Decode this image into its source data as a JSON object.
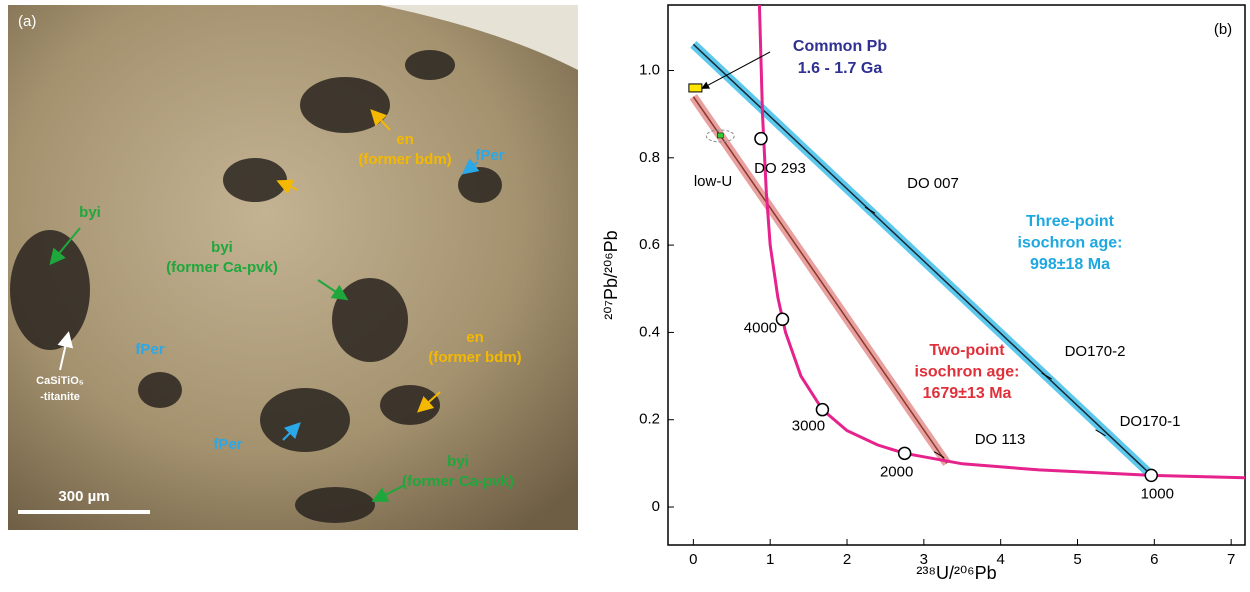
{
  "photo": {
    "panel_label": "(a)",
    "scale_bar": "300 µm",
    "labels": [
      {
        "lines": [
          "en",
          "(former bdm)"
        ],
        "color": "#f5b800"
      },
      {
        "lines": [
          "fPer"
        ],
        "color": "#2aa8e8"
      },
      {
        "lines": [
          "byi"
        ],
        "color": "#1ea83c"
      },
      {
        "lines": [
          "byi",
          "(former Ca-pvk)"
        ],
        "color": "#1ea83c"
      },
      {
        "lines": [
          "CaSiTiO₅",
          "-titanite"
        ],
        "color": "#ffffff"
      },
      {
        "lines": [
          "fPer"
        ],
        "color": "#2aa8e8"
      },
      {
        "lines": [
          "en",
          "(former bdm)"
        ],
        "color": "#f5b800"
      },
      {
        "lines": [
          "fPer"
        ],
        "color": "#2aa8e8"
      },
      {
        "lines": [
          "byi",
          "(former Ca-pvk)"
        ],
        "color": "#1ea83c"
      }
    ]
  },
  "chart_data": {
    "type": "line",
    "panel_label": "(b)",
    "x_label": "²³⁸U/²⁰⁶Pb",
    "y_label": "²⁰⁷Pb/²⁰⁶Pb",
    "xlim": [
      -0.33,
      7.18
    ],
    "ylim": [
      -0.087,
      1.15
    ],
    "xticks": [
      0,
      1,
      2,
      3,
      4,
      5,
      6,
      7
    ],
    "yticks": [
      0,
      0.2,
      0.4,
      0.6,
      0.8,
      {
        "value": 1,
        "label": "1.0"
      }
    ],
    "concordia": {
      "color": "#e6228c",
      "x": [
        0.86,
        0.9,
        0.95,
        1.0,
        1.1,
        1.2,
        1.4,
        1.68,
        2.0,
        2.4,
        2.75,
        3.5,
        4.5,
        5.96,
        7.18
      ],
      "values": [
        1.15,
        0.9,
        0.72,
        0.6,
        0.48,
        0.4,
        0.3,
        0.223,
        0.175,
        0.142,
        0.123,
        0.099,
        0.085,
        0.0725,
        0.067
      ]
    },
    "concordia_ages": {
      "labels": [
        "4000",
        "3000",
        "2000",
        "1000"
      ],
      "x": [
        1.16,
        1.68,
        2.75,
        5.96
      ],
      "values": [
        0.43,
        0.223,
        0.123,
        0.0725
      ]
    },
    "isochrons": [
      {
        "color": "#1a2a3a",
        "band_color": "#5cc8ec",
        "x": [
          0,
          5.95
        ],
        "values": [
          1.06,
          0.075
        ],
        "label": [
          "Three-point",
          "isochron age:",
          "998±18 Ma"
        ],
        "label_color": "#1ea8e0"
      },
      {
        "color": "#8a3a2a",
        "band_color": "#e8a0a0",
        "x": [
          0,
          3.3
        ],
        "values": [
          0.94,
          0.1
        ],
        "label": [
          "Two-point",
          "isochron age:",
          "1679±13 Ma"
        ],
        "label_color": "#e0303a"
      }
    ],
    "common_pb": {
      "x": 0.02,
      "value": 0.96,
      "color": "#ffe600",
      "label": [
        "Common Pb",
        "1.6 - 1.7 Ga"
      ],
      "label_color": "#2e3192"
    },
    "low_u": {
      "x": 0.35,
      "value": 0.85,
      "label": "low-U"
    },
    "samples": [
      {
        "label": "DO 293",
        "x": 0.88,
        "value": 0.844
      },
      {
        "label": "DO 007",
        "x": 2.3,
        "value": 0.68
      },
      {
        "label": "DO170-2",
        "x": 4.6,
        "value": 0.3
      },
      {
        "label": "DO170-1",
        "x": 5.3,
        "value": 0.17
      },
      {
        "label": "DO 113",
        "x": 3.2,
        "value": 0.12
      }
    ]
  }
}
